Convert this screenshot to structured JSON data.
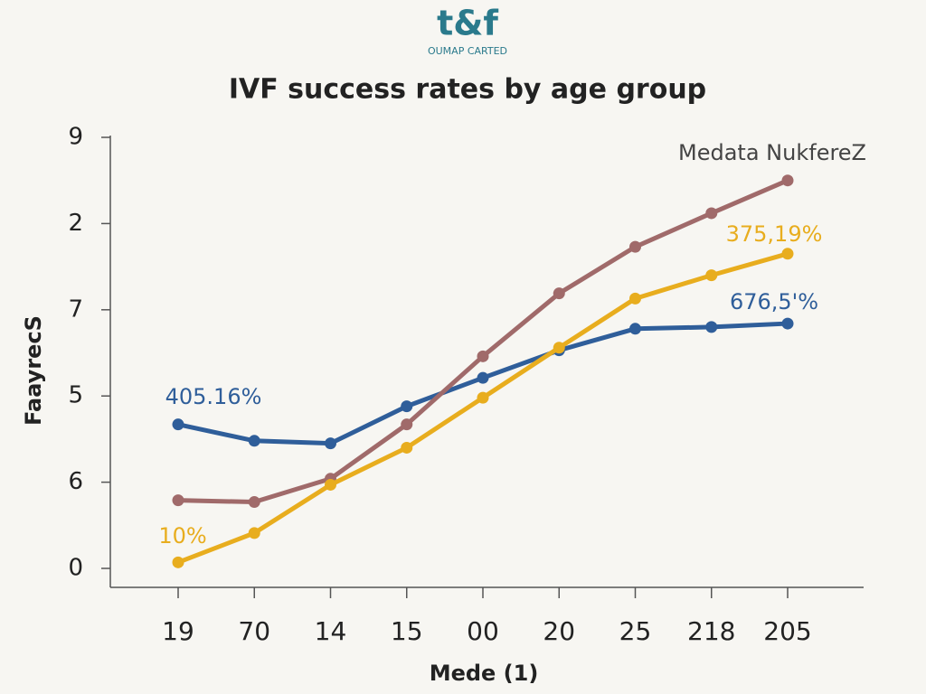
{
  "chart_data": {
    "type": "line",
    "logo": "t&f",
    "logo_subtitle": "OUMAP CARTED",
    "title": "IVF success rates by age group",
    "ylabel": "FaayrecS",
    "xlabel": "Mede (1)",
    "categories": [
      "19",
      "70",
      "14",
      "15",
      "00",
      "20",
      "25",
      "218",
      "205"
    ],
    "ylim": [
      0,
      5
    ],
    "yticks": [
      0,
      {
        "value": 1,
        "label": "6"
      },
      {
        "value": 2,
        "label": "5"
      },
      {
        "value": 3,
        "label": "7"
      },
      {
        "value": 4,
        "label": "2"
      },
      {
        "value": 5,
        "label": "9"
      }
    ],
    "series": [
      {
        "color": "#2f5e9a",
        "values": [
          1.67,
          1.48,
          1.45,
          1.88,
          2.21,
          2.53,
          2.78,
          2.8,
          2.84
        ]
      },
      {
        "name": "Medata NukfereZ",
        "color": "#a06a6a",
        "values": [
          0.79,
          0.77,
          1.04,
          1.67,
          2.46,
          3.19,
          3.73,
          4.12,
          4.5
        ]
      },
      {
        "color": "#e8ad1e",
        "values": [
          0.07,
          0.41,
          0.97,
          1.4,
          1.98,
          2.56,
          3.13,
          3.4,
          3.65
        ]
      }
    ],
    "annotations": [
      "405.16%",
      "10%",
      "375,19%",
      "676,5'%"
    ]
  }
}
